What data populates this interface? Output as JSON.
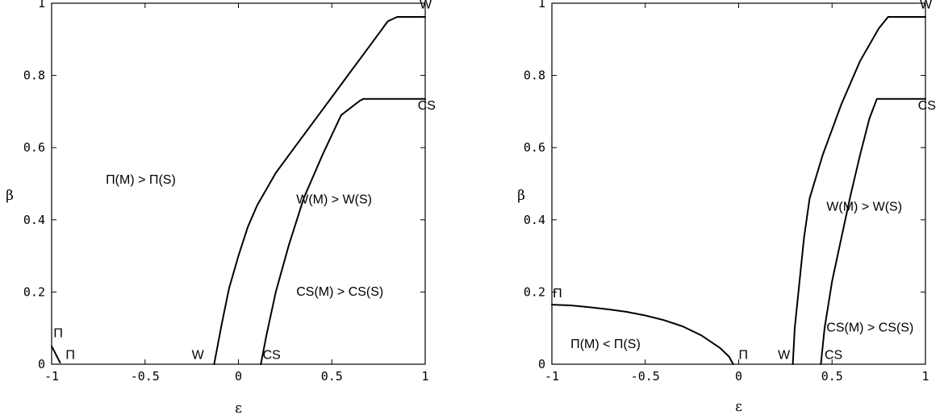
{
  "chart_data": [
    {
      "type": "line",
      "title": "",
      "xlabel": "ε",
      "ylabel": "β",
      "xlim": [
        -1,
        1
      ],
      "ylim": [
        0,
        1
      ],
      "xticks": [
        {
          "value": -1,
          "label": "-1"
        },
        {
          "value": -0.5,
          "label": "-0.5"
        },
        {
          "value": 0,
          "label": "0"
        },
        {
          "value": 0.5,
          "label": "0.5"
        },
        {
          "value": 1,
          "label": "1"
        }
      ],
      "yticks": [
        {
          "value": 0,
          "label": "0"
        },
        {
          "value": 0.2,
          "label": "0.2"
        },
        {
          "value": 0.4,
          "label": "0.4"
        },
        {
          "value": 0.6,
          "label": "0.6"
        },
        {
          "value": 0.8,
          "label": "0.8"
        },
        {
          "value": 1,
          "label": "1"
        }
      ],
      "grid": false,
      "series": [
        {
          "points": [
            [
              -1.0,
              0.05
            ],
            [
              -0.985,
              0.035
            ],
            [
              -0.97,
              0.02
            ],
            [
              -0.955,
              0.005
            ]
          ]
        },
        {
          "points": [
            [
              -0.13,
              0.0
            ],
            [
              -0.09,
              0.11
            ],
            [
              -0.05,
              0.21
            ],
            [
              0.0,
              0.3
            ],
            [
              0.05,
              0.38
            ],
            [
              0.1,
              0.44
            ],
            [
              0.2,
              0.53
            ],
            [
              0.3,
              0.6
            ],
            [
              0.4,
              0.67
            ],
            [
              0.5,
              0.74
            ],
            [
              0.6,
              0.81
            ],
            [
              0.7,
              0.88
            ],
            [
              0.8,
              0.95
            ],
            [
              0.85,
              0.962
            ],
            [
              1.0,
              0.962
            ]
          ]
        },
        {
          "points": [
            [
              0.12,
              0.0
            ],
            [
              0.15,
              0.08
            ],
            [
              0.2,
              0.2
            ],
            [
              0.27,
              0.33
            ],
            [
              0.35,
              0.46
            ],
            [
              0.45,
              0.58
            ],
            [
              0.55,
              0.69
            ],
            [
              0.65,
              0.73
            ],
            [
              0.67,
              0.735
            ],
            [
              1.0,
              0.735
            ]
          ]
        }
      ],
      "annotations": [
        {
          "text": "W",
          "x": 0.97,
          "y": 0.985
        },
        {
          "text": "CS",
          "x": 0.96,
          "y": 0.705
        },
        {
          "text": "Π(M) > Π(S)",
          "x": -0.71,
          "y": 0.5
        },
        {
          "text": "W(M) > W(S)",
          "x": 0.31,
          "y": 0.445
        },
        {
          "text": "CS(M) > CS(S)",
          "x": 0.31,
          "y": 0.19
        },
        {
          "text": "Π",
          "x": -0.99,
          "y": 0.075
        },
        {
          "text": "Π",
          "x": -0.925,
          "y": 0.015
        },
        {
          "text": "W",
          "x": -0.25,
          "y": 0.015
        },
        {
          "text": "CS",
          "x": 0.13,
          "y": 0.015
        }
      ]
    },
    {
      "type": "line",
      "title": "",
      "xlabel": "ε",
      "ylabel": "β",
      "xlim": [
        -1,
        1
      ],
      "ylim": [
        0,
        1
      ],
      "xticks": [
        {
          "value": -1,
          "label": "-1"
        },
        {
          "value": -0.5,
          "label": "-0.5"
        },
        {
          "value": 0,
          "label": "0"
        },
        {
          "value": 0.5,
          "label": "0.5"
        },
        {
          "value": 1,
          "label": "1"
        }
      ],
      "yticks": [
        {
          "value": 0,
          "label": "0"
        },
        {
          "value": 0.2,
          "label": "0.2"
        },
        {
          "value": 0.4,
          "label": "0.4"
        },
        {
          "value": 0.6,
          "label": "0.6"
        },
        {
          "value": 0.8,
          "label": "0.8"
        },
        {
          "value": 1,
          "label": "1"
        }
      ],
      "grid": false,
      "series": [
        {
          "points": [
            [
              -1.0,
              0.165
            ],
            [
              -0.9,
              0.163
            ],
            [
              -0.8,
              0.158
            ],
            [
              -0.7,
              0.152
            ],
            [
              -0.6,
              0.145
            ],
            [
              -0.5,
              0.135
            ],
            [
              -0.4,
              0.122
            ],
            [
              -0.3,
              0.105
            ],
            [
              -0.2,
              0.08
            ],
            [
              -0.1,
              0.045
            ],
            [
              -0.05,
              0.02
            ],
            [
              -0.03,
              0.0
            ]
          ]
        },
        {
          "points": [
            [
              0.29,
              0.0
            ],
            [
              0.3,
              0.1
            ],
            [
              0.32,
              0.2
            ],
            [
              0.35,
              0.35
            ],
            [
              0.38,
              0.46
            ],
            [
              0.45,
              0.58
            ],
            [
              0.55,
              0.72
            ],
            [
              0.65,
              0.84
            ],
            [
              0.75,
              0.93
            ],
            [
              0.8,
              0.962
            ],
            [
              1.0,
              0.962
            ]
          ]
        },
        {
          "points": [
            [
              0.44,
              0.0
            ],
            [
              0.46,
              0.1
            ],
            [
              0.5,
              0.23
            ],
            [
              0.55,
              0.35
            ],
            [
              0.6,
              0.47
            ],
            [
              0.65,
              0.58
            ],
            [
              0.7,
              0.68
            ],
            [
              0.74,
              0.735
            ],
            [
              1.0,
              0.735
            ]
          ]
        }
      ],
      "annotations": [
        {
          "text": "W",
          "x": 0.97,
          "y": 0.985
        },
        {
          "text": "CS",
          "x": 0.96,
          "y": 0.705
        },
        {
          "text": "W(M) > W(S)",
          "x": 0.47,
          "y": 0.425
        },
        {
          "text": "CS(M) > CS(S)",
          "x": 0.47,
          "y": 0.09
        },
        {
          "text": "Π",
          "x": -0.995,
          "y": 0.185
        },
        {
          "text": "Π(M) < Π(S)",
          "x": -0.9,
          "y": 0.045
        },
        {
          "text": "Π",
          "x": 0.0,
          "y": 0.015
        },
        {
          "text": "W",
          "x": 0.21,
          "y": 0.015
        },
        {
          "text": "CS",
          "x": 0.46,
          "y": 0.015
        }
      ]
    }
  ]
}
